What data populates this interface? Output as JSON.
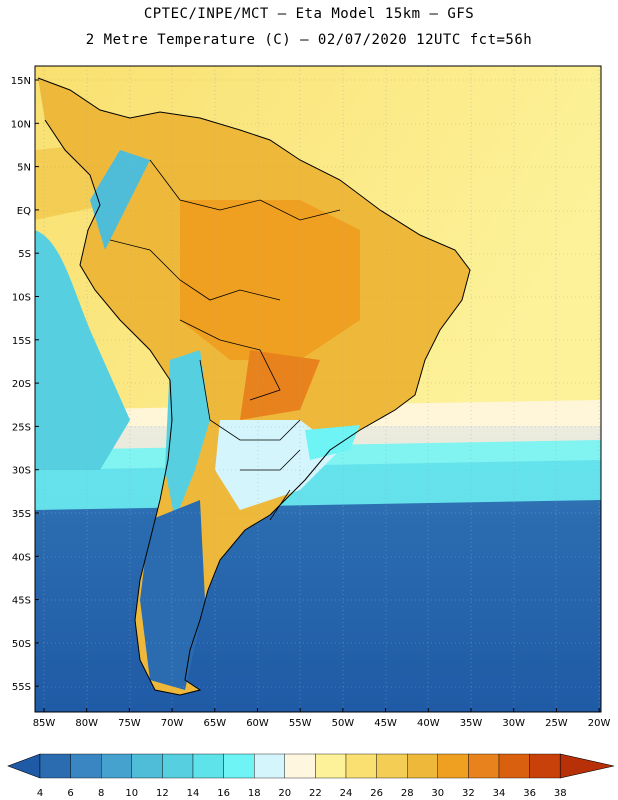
{
  "title": {
    "line1": "CPTEC/INPE/MCT –  Eta Model 15km – GFS",
    "line2": "2 Metre Temperature (C) – 02/07/2020 12UTC fct=56h"
  },
  "map": {
    "lat_labels": [
      "15N",
      "10N",
      "5N",
      "EQ",
      "5S",
      "10S",
      "15S",
      "20S",
      "25S",
      "30S",
      "35S",
      "40S",
      "45S",
      "50S",
      "55S"
    ],
    "lon_labels": [
      "85W",
      "80W",
      "75W",
      "70W",
      "65W",
      "60W",
      "55W",
      "50W",
      "45W",
      "40W",
      "35W",
      "30W",
      "25W",
      "20W"
    ]
  },
  "colorbar": {
    "ticks": [
      "4",
      "6",
      "8",
      "10",
      "12",
      "14",
      "16",
      "18",
      "20",
      "22",
      "24",
      "26",
      "28",
      "30",
      "32",
      "34",
      "36",
      "38"
    ],
    "colors": [
      "#1f5aa6",
      "#2b6cb0",
      "#3a86c2",
      "#45a2cf",
      "#4fbcd8",
      "#56cfe0",
      "#5fe3ea",
      "#6ef4f4",
      "#d4f5fb",
      "#fff6e0",
      "#fdf29a",
      "#f9e070",
      "#f4cd55",
      "#eeb93b",
      "#f0a020",
      "#e8821c",
      "#d9600f",
      "#c8400a",
      "#b83008"
    ]
  }
}
